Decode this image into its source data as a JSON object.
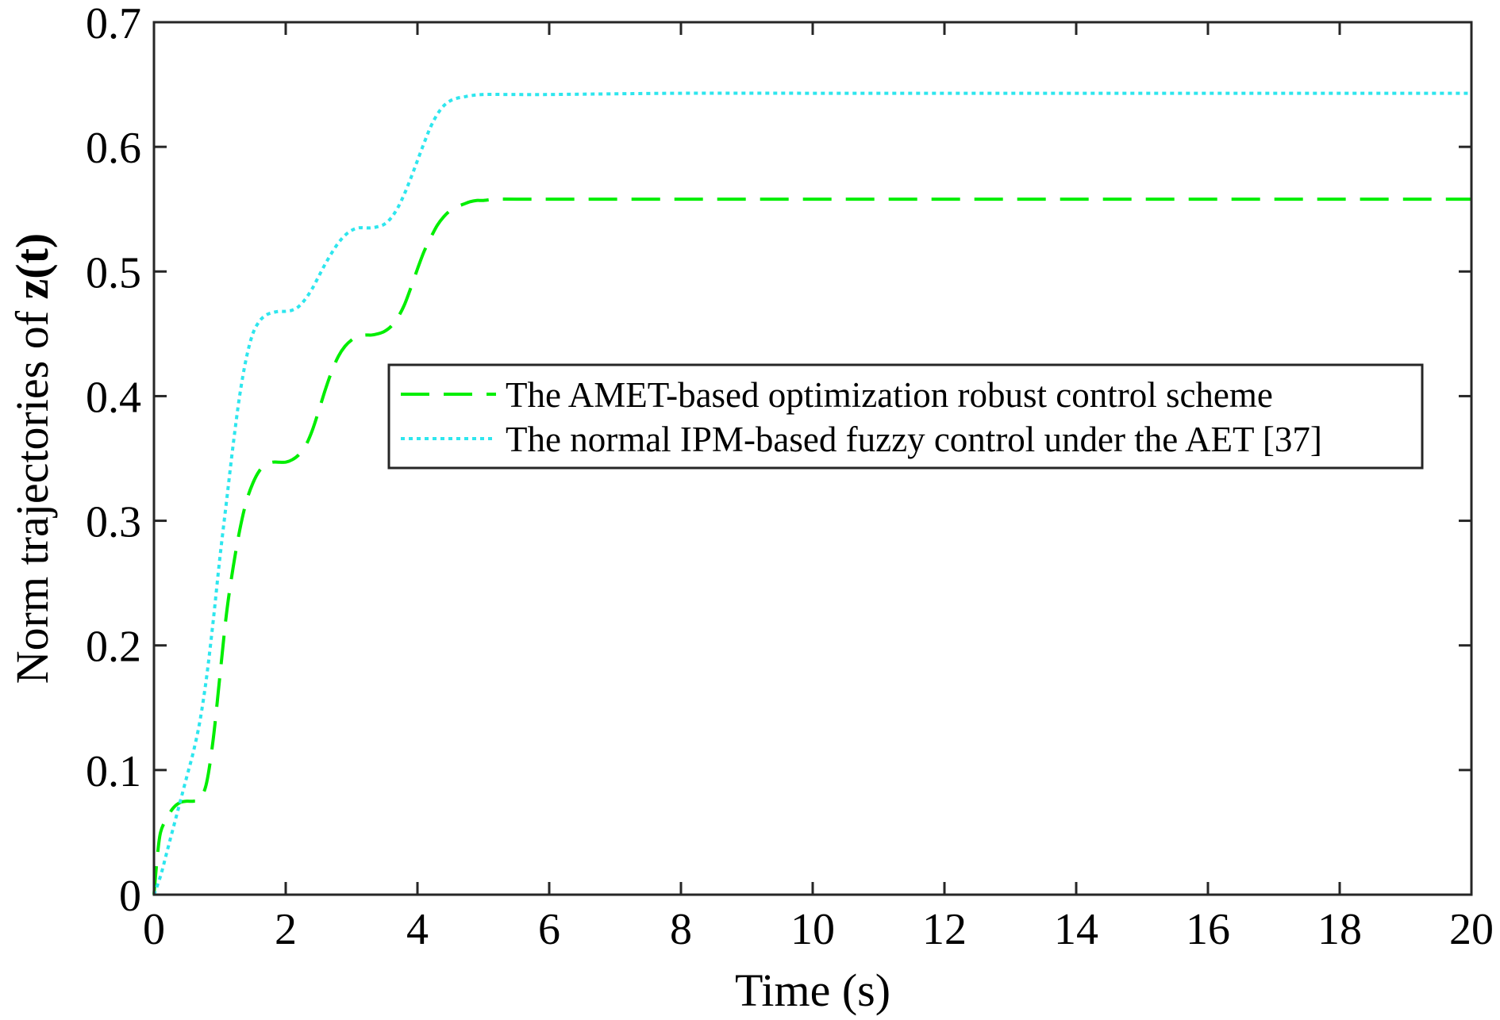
{
  "chart_data": {
    "type": "line",
    "title": "",
    "xlabel": "Time (s)",
    "ylabel_prefix": "Norm trajectories of ",
    "ylabel_bold": "z(t)",
    "xlim": [
      0,
      20
    ],
    "ylim": [
      0,
      0.7
    ],
    "xticks": [
      0,
      2,
      4,
      6,
      8,
      10,
      12,
      14,
      16,
      18,
      20
    ],
    "yticks": [
      0,
      0.1,
      0.2,
      0.3,
      0.4,
      0.5,
      0.6,
      0.7
    ],
    "xtick_labels": [
      "0",
      "2",
      "4",
      "6",
      "8",
      "10",
      "12",
      "14",
      "16",
      "18",
      "20"
    ],
    "ytick_labels": [
      "0",
      "0.1",
      "0.2",
      "0.3",
      "0.4",
      "0.5",
      "0.6",
      "0.7"
    ],
    "grid": false,
    "legend_position": "center-right",
    "series": [
      {
        "name": "The AMET-based optimization robust control scheme",
        "color": "#00ee00",
        "style": "dashed",
        "x": [
          0,
          0.05,
          0.1,
          0.2,
          0.3,
          0.4,
          0.5,
          0.6,
          0.7,
          0.8,
          0.9,
          1.0,
          1.1,
          1.2,
          1.3,
          1.4,
          1.5,
          1.6,
          1.7,
          1.8,
          1.9,
          2.0,
          2.1,
          2.2,
          2.3,
          2.4,
          2.5,
          2.6,
          2.7,
          2.8,
          2.9,
          3.0,
          3.1,
          3.2,
          3.3,
          3.4,
          3.5,
          3.6,
          3.7,
          3.8,
          3.9,
          4.0,
          4.1,
          4.2,
          4.3,
          4.4,
          4.5,
          4.6,
          4.7,
          4.8,
          4.9,
          5.0,
          5.2,
          5.5,
          6,
          8,
          10,
          12,
          14,
          16,
          18,
          20
        ],
        "y": [
          0.0,
          0.03,
          0.05,
          0.062,
          0.07,
          0.074,
          0.075,
          0.075,
          0.077,
          0.09,
          0.125,
          0.175,
          0.225,
          0.262,
          0.292,
          0.315,
          0.33,
          0.34,
          0.345,
          0.347,
          0.347,
          0.347,
          0.349,
          0.353,
          0.36,
          0.372,
          0.388,
          0.405,
          0.42,
          0.432,
          0.44,
          0.445,
          0.448,
          0.449,
          0.449,
          0.45,
          0.452,
          0.456,
          0.463,
          0.473,
          0.487,
          0.502,
          0.516,
          0.527,
          0.537,
          0.544,
          0.549,
          0.552,
          0.554,
          0.556,
          0.557,
          0.557,
          0.558,
          0.558,
          0.558,
          0.558,
          0.558,
          0.558,
          0.558,
          0.558,
          0.558,
          0.558
        ]
      },
      {
        "name": "The normal IPM-based fuzzy control under the AET [37]",
        "color": "#2ee6ee",
        "style": "dotted",
        "x": [
          0,
          0.1,
          0.2,
          0.3,
          0.4,
          0.5,
          0.6,
          0.7,
          0.8,
          0.9,
          1.0,
          1.1,
          1.2,
          1.3,
          1.4,
          1.5,
          1.6,
          1.7,
          1.8,
          1.9,
          2.0,
          2.1,
          2.2,
          2.3,
          2.4,
          2.5,
          2.6,
          2.7,
          2.8,
          2.9,
          3.0,
          3.1,
          3.2,
          3.3,
          3.4,
          3.5,
          3.6,
          3.7,
          3.8,
          3.9,
          4.0,
          4.1,
          4.2,
          4.3,
          4.4,
          4.5,
          4.6,
          4.7,
          4.8,
          5.0,
          5.5,
          6,
          8,
          10,
          12,
          14,
          16,
          18,
          20
        ],
        "y": [
          0.0,
          0.015,
          0.035,
          0.055,
          0.075,
          0.095,
          0.115,
          0.14,
          0.175,
          0.22,
          0.27,
          0.315,
          0.36,
          0.4,
          0.43,
          0.45,
          0.46,
          0.465,
          0.467,
          0.468,
          0.468,
          0.469,
          0.472,
          0.478,
          0.486,
          0.496,
          0.506,
          0.515,
          0.523,
          0.529,
          0.533,
          0.535,
          0.535,
          0.535,
          0.536,
          0.538,
          0.543,
          0.551,
          0.562,
          0.575,
          0.589,
          0.603,
          0.616,
          0.626,
          0.633,
          0.637,
          0.639,
          0.64,
          0.641,
          0.642,
          0.642,
          0.642,
          0.643,
          0.643,
          0.643,
          0.643,
          0.643,
          0.643,
          0.643
        ]
      }
    ]
  }
}
